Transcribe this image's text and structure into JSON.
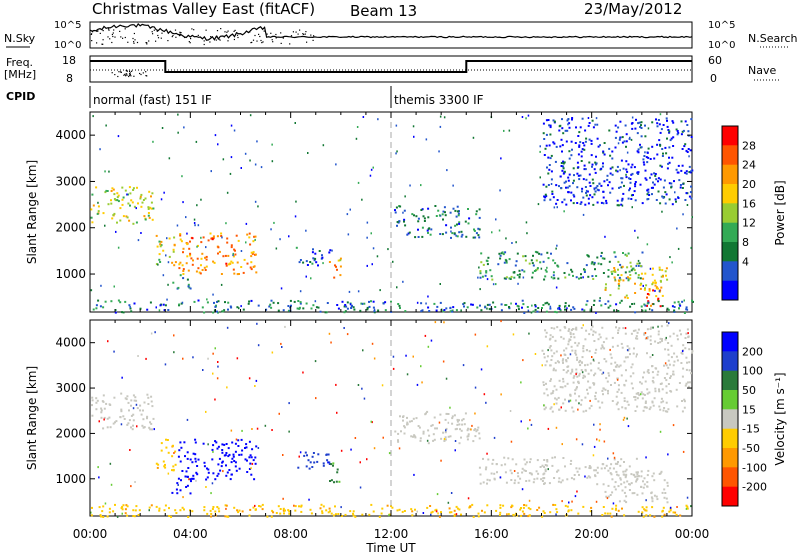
{
  "header": {
    "title": "Christmas Valley East (fitACF)",
    "beam": "Beam 13",
    "date": "23/May/2012"
  },
  "top_panels": {
    "nsky_label": "N.Sky",
    "nsearch_label": "N.Search",
    "nsky_ticks": [
      "10^5",
      "10^0"
    ],
    "nsearch_ticks": [
      "10^5",
      "10^0"
    ],
    "freq_label": "Freq.",
    "freq_unit": "[MHz]",
    "freq_ticks": [
      "18",
      "8"
    ],
    "nave_label": "Nave",
    "nave_ticks": [
      "60",
      "0"
    ],
    "cpid_label": "CPID",
    "cpid_segments": [
      {
        "label": "normal (fast) 151 IF",
        "start_hour": 0,
        "end_hour": 12
      },
      {
        "label": "themis 3300 IF",
        "start_hour": 12,
        "end_hour": 24
      }
    ]
  },
  "colorbars": {
    "power": {
      "label": "Power [dB]",
      "ticks": [
        "28",
        "24",
        "20",
        "16",
        "12",
        "8",
        "4"
      ],
      "colors": [
        "#ff0000",
        "#ff5500",
        "#ff9900",
        "#ffcc00",
        "#99cc33",
        "#33aa55",
        "#117733",
        "#2255cc",
        "#0000ff"
      ]
    },
    "velocity": {
      "label": "Velocity [m s⁻¹]",
      "ticks": [
        "200",
        "100",
        "50",
        "15",
        "-15",
        "-50",
        "-100",
        "-200"
      ],
      "colors": [
        "#0000ff",
        "#1e3fcc",
        "#2a7a3a",
        "#66cc33",
        "#c8c8c0",
        "#ffcc00",
        "#ff9900",
        "#ff5500",
        "#ff0000"
      ]
    }
  },
  "chart_data": [
    {
      "type": "heatmap",
      "name": "power",
      "ylabel": "Slant Range [km]",
      "xlabel": "Time UT",
      "ylim": [
        180,
        4500
      ],
      "xlim": [
        0,
        24
      ],
      "y_ticks": [
        1000,
        2000,
        3000,
        4000
      ],
      "x_ticks": [
        "00:00",
        "04:00",
        "08:00",
        "12:00",
        "16:00",
        "20:00",
        "00:00"
      ],
      "echo_regions": [
        {
          "t_start": 0.0,
          "t_end": 2.5,
          "r_start": 2100,
          "r_end": 2900,
          "power_db": 18
        },
        {
          "t_start": 2.6,
          "t_end": 3.4,
          "r_start": 1200,
          "r_end": 1900,
          "power_db": 20
        },
        {
          "t_start": 3.5,
          "t_end": 6.6,
          "r_start": 1000,
          "r_end": 1900,
          "power_db": 24
        },
        {
          "t_start": 3.2,
          "t_end": 4.0,
          "r_start": 700,
          "r_end": 1000,
          "power_db": 10
        },
        {
          "t_start": 8.2,
          "t_end": 9.6,
          "r_start": 1200,
          "r_end": 1600,
          "power_db": 8
        },
        {
          "t_start": 9.5,
          "t_end": 10.0,
          "r_start": 900,
          "r_end": 1400,
          "power_db": 22
        },
        {
          "t_start": 12.1,
          "t_end": 15.5,
          "r_start": 1800,
          "r_end": 2500,
          "power_db": 10
        },
        {
          "t_start": 15.5,
          "t_end": 22.0,
          "r_start": 900,
          "r_end": 1500,
          "power_db": 12
        },
        {
          "t_start": 20.5,
          "t_end": 23.0,
          "r_start": 500,
          "r_end": 1200,
          "power_db": 20
        },
        {
          "t_start": 22.0,
          "t_end": 22.8,
          "r_start": 300,
          "r_end": 700,
          "power_db": 28
        },
        {
          "t_start": 18.0,
          "t_end": 24.0,
          "r_start": 2500,
          "r_end": 4400,
          "power_db": 6
        },
        {
          "t_start": 0.0,
          "t_end": 24.0,
          "r_start": 180,
          "r_end": 450,
          "power_db": 10
        }
      ]
    },
    {
      "type": "heatmap",
      "name": "velocity",
      "ylabel": "Slant Range [km]",
      "xlabel": "Time UT",
      "ylim": [
        180,
        4500
      ],
      "xlim": [
        0,
        24
      ],
      "y_ticks": [
        1000,
        2000,
        3000,
        4000
      ],
      "x_ticks": [
        "00:00",
        "04:00",
        "08:00",
        "12:00",
        "16:00",
        "20:00",
        "00:00"
      ],
      "echo_regions": [
        {
          "t_start": 0.0,
          "t_end": 2.5,
          "r_start": 2100,
          "r_end": 2900,
          "velocity": 0
        },
        {
          "t_start": 2.6,
          "t_end": 3.4,
          "r_start": 1200,
          "r_end": 1900,
          "velocity": -40
        },
        {
          "t_start": 3.5,
          "t_end": 6.6,
          "r_start": 1000,
          "r_end": 1900,
          "velocity": 220
        },
        {
          "t_start": 3.2,
          "t_end": 4.0,
          "r_start": 700,
          "r_end": 1000,
          "velocity": 220
        },
        {
          "t_start": 8.2,
          "t_end": 9.6,
          "r_start": 1200,
          "r_end": 1600,
          "velocity": 150
        },
        {
          "t_start": 9.5,
          "t_end": 10.0,
          "r_start": 900,
          "r_end": 1400,
          "velocity": 60
        },
        {
          "t_start": 12.1,
          "t_end": 15.5,
          "r_start": 1800,
          "r_end": 2500,
          "velocity": 0
        },
        {
          "t_start": 15.5,
          "t_end": 22.0,
          "r_start": 900,
          "r_end": 1500,
          "velocity": 0
        },
        {
          "t_start": 20.5,
          "t_end": 23.0,
          "r_start": 500,
          "r_end": 1200,
          "velocity": 0
        },
        {
          "t_start": 18.0,
          "t_end": 24.0,
          "r_start": 2500,
          "r_end": 4400,
          "velocity": 0
        },
        {
          "t_start": 0.0,
          "t_end": 24.0,
          "r_start": 180,
          "r_end": 450,
          "velocity": -40
        }
      ]
    }
  ]
}
